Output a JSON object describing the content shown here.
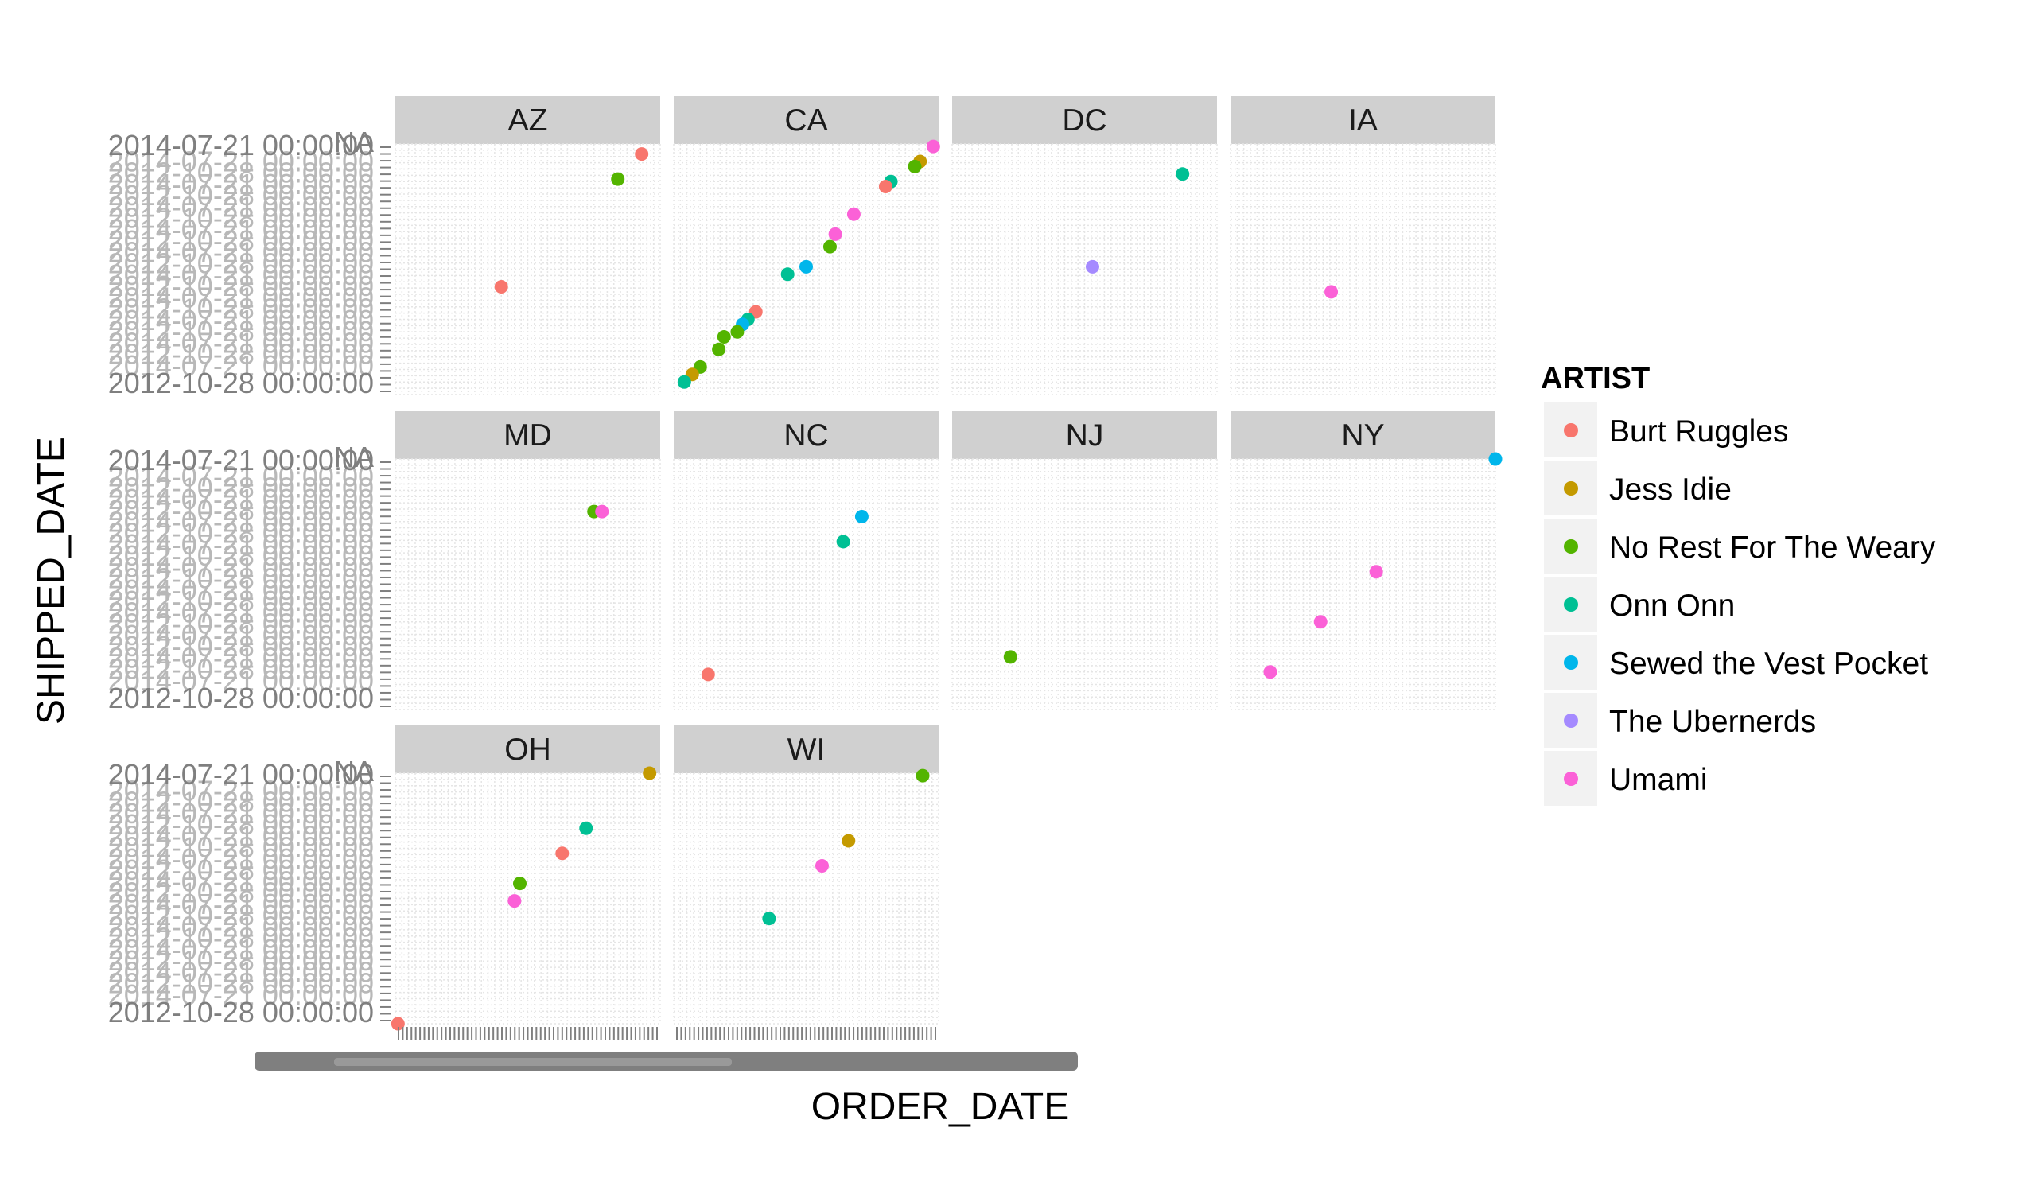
{
  "chart_data": {
    "type": "scatter",
    "xlabel": "ORDER_DATE",
    "ylabel": "SHIPPED_DATE",
    "y_tick_labels": [
      "2012-10-28 00:00:00",
      "2014-07-21 00:00:00"
    ],
    "y_tick_overlap_text": "NA",
    "x_tick_labels_unreadable": true,
    "grid": true,
    "facet_by": "STATE",
    "legend": {
      "title": "ARTIST",
      "placement": "right",
      "entries": [
        {
          "name": "Burt Ruggles",
          "color": "#F8766D"
        },
        {
          "name": "Jess Idie",
          "color": "#C49A00"
        },
        {
          "name": "No Rest For The Weary",
          "color": "#53B400"
        },
        {
          "name": "Onn Onn",
          "color": "#00C094"
        },
        {
          "name": "Sewed the Vest Pocket",
          "color": "#00B6EB"
        },
        {
          "name": "The Ubernerds",
          "color": "#A58AFF"
        },
        {
          "name": "Umami",
          "color": "#FB61D7"
        }
      ]
    },
    "panels": [
      {
        "label": "AZ",
        "points": [
          {
            "x": 0.93,
            "y": 0.96,
            "artist": "Burt Ruggles"
          },
          {
            "x": 0.84,
            "y": 0.86,
            "artist": "No Rest For The Weary"
          },
          {
            "x": 0.4,
            "y": 0.43,
            "artist": "Burt Ruggles"
          }
        ]
      },
      {
        "label": "CA",
        "points": [
          {
            "x": 0.98,
            "y": 0.99,
            "artist": "Umami"
          },
          {
            "x": 0.93,
            "y": 0.93,
            "artist": "Jess Idie"
          },
          {
            "x": 0.91,
            "y": 0.91,
            "artist": "No Rest For The Weary"
          },
          {
            "x": 0.82,
            "y": 0.85,
            "artist": "Onn Onn"
          },
          {
            "x": 0.8,
            "y": 0.83,
            "artist": "Burt Ruggles"
          },
          {
            "x": 0.68,
            "y": 0.72,
            "artist": "Umami"
          },
          {
            "x": 0.61,
            "y": 0.64,
            "artist": "Umami"
          },
          {
            "x": 0.59,
            "y": 0.59,
            "artist": "No Rest For The Weary"
          },
          {
            "x": 0.5,
            "y": 0.51,
            "artist": "Sewed the Vest Pocket"
          },
          {
            "x": 0.43,
            "y": 0.48,
            "artist": "Onn Onn"
          },
          {
            "x": 0.31,
            "y": 0.33,
            "artist": "Burt Ruggles"
          },
          {
            "x": 0.28,
            "y": 0.3,
            "artist": "Onn Onn"
          },
          {
            "x": 0.26,
            "y": 0.28,
            "artist": "Sewed the Vest Pocket"
          },
          {
            "x": 0.24,
            "y": 0.25,
            "artist": "No Rest For The Weary"
          },
          {
            "x": 0.19,
            "y": 0.23,
            "artist": "No Rest For The Weary"
          },
          {
            "x": 0.17,
            "y": 0.18,
            "artist": "No Rest For The Weary"
          },
          {
            "x": 0.1,
            "y": 0.11,
            "artist": "No Rest For The Weary"
          },
          {
            "x": 0.07,
            "y": 0.08,
            "artist": "Jess Idie"
          },
          {
            "x": 0.04,
            "y": 0.05,
            "artist": "Onn Onn"
          }
        ]
      },
      {
        "label": "DC",
        "points": [
          {
            "x": 0.87,
            "y": 0.88,
            "artist": "Onn Onn"
          },
          {
            "x": 0.53,
            "y": 0.51,
            "artist": "The Ubernerds"
          }
        ]
      },
      {
        "label": "IA",
        "points": [
          {
            "x": 0.38,
            "y": 0.41,
            "artist": "Umami"
          }
        ]
      },
      {
        "label": "MD",
        "points": [
          {
            "x": 0.75,
            "y": 0.79,
            "artist": "No Rest For The Weary"
          },
          {
            "x": 0.78,
            "y": 0.79,
            "artist": "Umami"
          }
        ]
      },
      {
        "label": "NC",
        "points": [
          {
            "x": 0.71,
            "y": 0.77,
            "artist": "Sewed the Vest Pocket"
          },
          {
            "x": 0.64,
            "y": 0.67,
            "artist": "Onn Onn"
          },
          {
            "x": 0.13,
            "y": 0.14,
            "artist": "Burt Ruggles"
          }
        ]
      },
      {
        "label": "NJ",
        "points": [
          {
            "x": 0.22,
            "y": 0.21,
            "artist": "No Rest For The Weary"
          }
        ]
      },
      {
        "label": "NY",
        "points": [
          {
            "x": 1.0,
            "y": 1.0,
            "artist": "Sewed the Vest Pocket"
          },
          {
            "x": 0.55,
            "y": 0.55,
            "artist": "Umami"
          },
          {
            "x": 0.34,
            "y": 0.35,
            "artist": "Umami"
          },
          {
            "x": 0.15,
            "y": 0.15,
            "artist": "Umami"
          }
        ]
      },
      {
        "label": "OH",
        "points": [
          {
            "x": 0.96,
            "y": 1.0,
            "artist": "Jess Idie"
          },
          {
            "x": 0.72,
            "y": 0.78,
            "artist": "Onn Onn"
          },
          {
            "x": 0.63,
            "y": 0.68,
            "artist": "Burt Ruggles"
          },
          {
            "x": 0.47,
            "y": 0.56,
            "artist": "No Rest For The Weary"
          },
          {
            "x": 0.45,
            "y": 0.49,
            "artist": "Umami"
          },
          {
            "x": 0.01,
            "y": 0.0,
            "artist": "Burt Ruggles"
          }
        ]
      },
      {
        "label": "WI",
        "points": [
          {
            "x": 0.94,
            "y": 0.99,
            "artist": "No Rest For The Weary"
          },
          {
            "x": 0.66,
            "y": 0.73,
            "artist": "Jess Idie"
          },
          {
            "x": 0.56,
            "y": 0.63,
            "artist": "Umami"
          },
          {
            "x": 0.36,
            "y": 0.42,
            "artist": "Onn Onn"
          }
        ]
      }
    ]
  }
}
